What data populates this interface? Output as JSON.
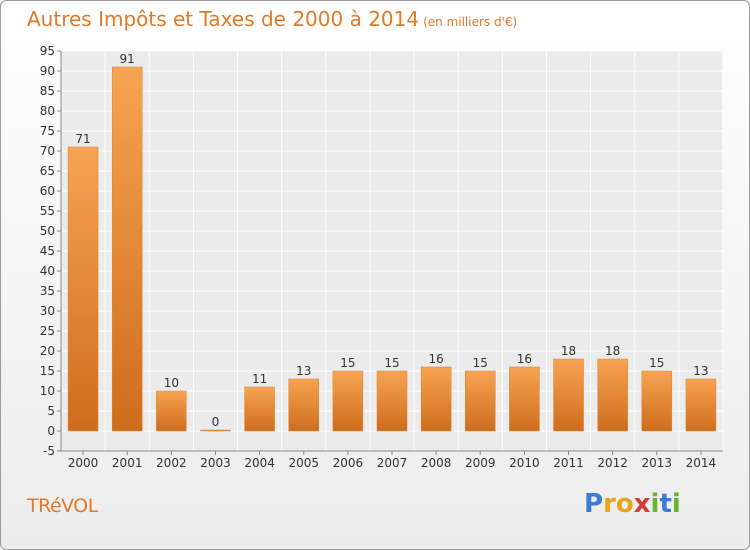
{
  "title": "Autres Impôts et Taxes de 2000 à 2014",
  "subtitle": "(en milliers d'€)",
  "town": "TRéVOL",
  "logo_text": "Proxiti",
  "colors": {
    "accent": "#e07a2a",
    "bar_top": "#f6a452",
    "bar_bottom": "#cf6d1c"
  },
  "chart_data": {
    "type": "bar",
    "categories": [
      "2000",
      "2001",
      "2002",
      "2003",
      "2004",
      "2005",
      "2006",
      "2007",
      "2008",
      "2009",
      "2010",
      "2011",
      "2012",
      "2013",
      "2014"
    ],
    "values": [
      71,
      91,
      10,
      0,
      11,
      13,
      15,
      15,
      16,
      15,
      16,
      18,
      18,
      15,
      13
    ],
    "ylim": [
      -5,
      95
    ],
    "yticks": [
      -5,
      0,
      5,
      10,
      15,
      20,
      25,
      30,
      35,
      40,
      45,
      50,
      55,
      60,
      65,
      70,
      75,
      80,
      85,
      90,
      95
    ],
    "grid": true,
    "title": "Autres Impôts et Taxes de 2000 à 2014",
    "xlabel": "",
    "ylabel": ""
  }
}
